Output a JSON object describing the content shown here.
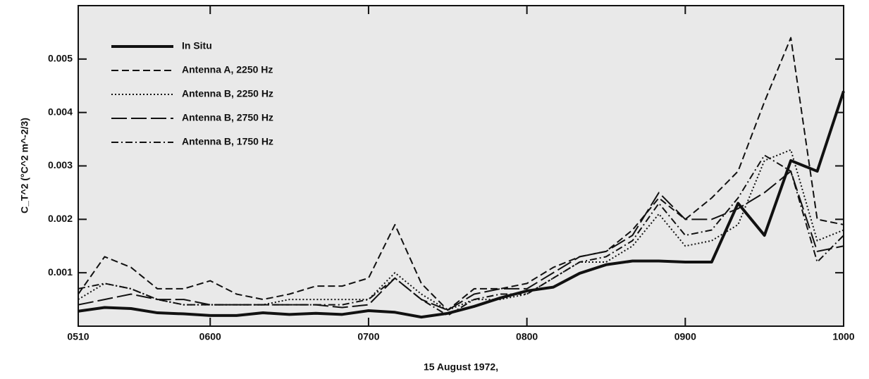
{
  "chart_data": {
    "type": "line",
    "x_label": "15 August 1972,",
    "y_label": "C_T^2 (°C^2 m^-2/3)",
    "legend": "upper left",
    "x": [
      310,
      320,
      330,
      340,
      350,
      360,
      370,
      380,
      390,
      400,
      410,
      420,
      430,
      440,
      450,
      460,
      470,
      480,
      490,
      500,
      510,
      520,
      530,
      540,
      550,
      560,
      570,
      580,
      590,
      600
    ],
    "xlim": [
      310,
      600
    ],
    "xticks": [
      {
        "value": 310,
        "label": "0510"
      },
      {
        "value": 360,
        "label": "0600"
      },
      {
        "value": 420,
        "label": "0700"
      },
      {
        "value": 480,
        "label": "0800"
      },
      {
        "value": 540,
        "label": "0900"
      },
      {
        "value": 600,
        "label": "1000"
      }
    ],
    "ylim": [
      0,
      0.006
    ],
    "yticks": [
      0.001,
      0.002,
      0.003,
      0.004,
      0.005
    ],
    "series": [
      {
        "name": "In Situ",
        "color": "#111111",
        "line_style": "solid-bold",
        "values": [
          0.00028,
          0.00035,
          0.00033,
          0.00025,
          0.00023,
          0.0002,
          0.0002,
          0.00025,
          0.00022,
          0.00024,
          0.00022,
          0.00029,
          0.00026,
          0.00017,
          0.00024,
          0.00037,
          0.00053,
          0.00066,
          0.00073,
          0.00099,
          0.00115,
          0.00122,
          0.00122,
          0.0012,
          0.0012,
          0.0023,
          0.0017,
          0.0031,
          0.0029,
          0.0044
        ]
      },
      {
        "name": "Antenna A, 2250 Hz",
        "color": "#111111",
        "line_style": "dashed",
        "values": [
          0.0006,
          0.0013,
          0.0011,
          0.0007,
          0.0007,
          0.00085,
          0.0006,
          0.0005,
          0.0006,
          0.00075,
          0.00075,
          0.0009,
          0.0019,
          0.0008,
          0.0003,
          0.0007,
          0.0007,
          0.0008,
          0.0011,
          0.0013,
          0.0014,
          0.0018,
          0.0024,
          0.002,
          0.0024,
          0.0029,
          0.0042,
          0.0054,
          0.002,
          0.0019
        ]
      },
      {
        "name": "Antenna B, 2250 Hz",
        "color": "#111111",
        "line_style": "dotted",
        "values": [
          0.0005,
          0.0008,
          0.0007,
          0.0005,
          0.0004,
          0.0004,
          0.0004,
          0.0004,
          0.0005,
          0.0005,
          0.0005,
          0.0005,
          0.001,
          0.0006,
          0.0003,
          0.0005,
          0.0005,
          0.0006,
          0.0009,
          0.0012,
          0.0012,
          0.0015,
          0.0021,
          0.0015,
          0.0016,
          0.0019,
          0.0031,
          0.0033,
          0.0016,
          0.0018
        ]
      },
      {
        "name": "Antenna B, 2750 Hz",
        "color": "#111111",
        "line_style": "long-dashed",
        "values": [
          0.0004,
          0.0005,
          0.0006,
          0.0005,
          0.0005,
          0.0004,
          0.0004,
          0.0004,
          0.0004,
          0.0004,
          0.00035,
          0.0004,
          0.0009,
          0.0005,
          0.0003,
          0.0006,
          0.0007,
          0.0007,
          0.001,
          0.0013,
          0.0014,
          0.0017,
          0.0025,
          0.002,
          0.002,
          0.0022,
          0.0025,
          0.0029,
          0.0014,
          0.0015
        ]
      },
      {
        "name": "Antenna B, 1750 Hz",
        "color": "#111111",
        "line_style": "dash-dot",
        "values": [
          0.0007,
          0.0008,
          0.0007,
          0.0005,
          0.0004,
          0.0004,
          0.0004,
          0.0004,
          0.0004,
          0.0004,
          0.0004,
          0.0005,
          0.0009,
          0.0005,
          0.0002,
          0.0005,
          0.0006,
          0.0006,
          0.0009,
          0.0012,
          0.0013,
          0.0016,
          0.0023,
          0.0017,
          0.0018,
          0.0024,
          0.0032,
          0.0029,
          0.0012,
          0.0017
        ]
      }
    ]
  }
}
